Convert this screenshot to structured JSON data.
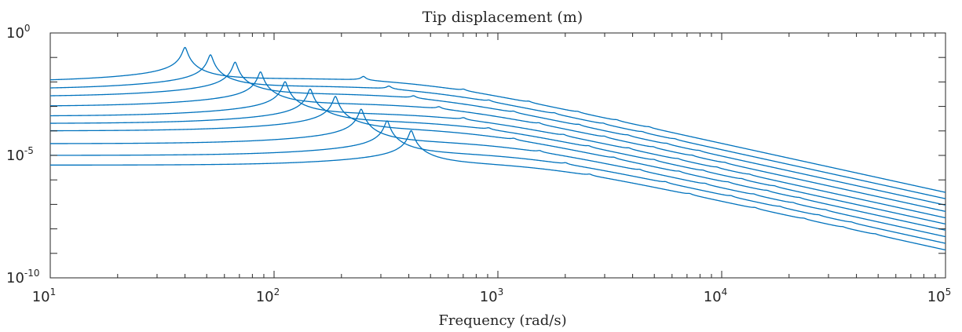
{
  "chart_data": {
    "type": "line",
    "title": "Tip displacement (m)",
    "xlabel": "Frequency (rad/s)",
    "ylabel": "",
    "xscale": "log",
    "yscale": "log",
    "xlim": [
      10,
      100000
    ],
    "ylim": [
      1e-10,
      1
    ],
    "grid": false,
    "line_color": "#0072BD",
    "x_tick_labels": [
      {
        "value": 10,
        "base": "10",
        "exp": "1"
      },
      {
        "value": 100,
        "base": "10",
        "exp": "2"
      },
      {
        "value": 1000,
        "base": "10",
        "exp": "3"
      },
      {
        "value": 10000,
        "base": "10",
        "exp": "4"
      },
      {
        "value": 100000,
        "base": "10",
        "exp": "5"
      }
    ],
    "y_tick_labels": [
      {
        "value": 1,
        "base": "10",
        "exp": "0"
      },
      {
        "value": 1e-05,
        "base": "10",
        "exp": "-5"
      },
      {
        "value": 1e-10,
        "base": "10",
        "exp": "-10"
      }
    ],
    "series": [
      {
        "static_response": 0.01,
        "first_resonance": 40,
        "high_freq_asymptote": 2e-07
      },
      {
        "static_response": 0.005,
        "first_resonance": 52,
        "high_freq_asymptote": 1.1e-07
      },
      {
        "static_response": 0.0025,
        "first_resonance": 67,
        "high_freq_asymptote": 6e-08
      },
      {
        "static_response": 0.001,
        "first_resonance": 87,
        "high_freq_asymptote": 3.3e-08
      },
      {
        "static_response": 0.0004,
        "first_resonance": 112,
        "high_freq_asymptote": 1.8e-08
      },
      {
        "static_response": 0.0002,
        "first_resonance": 145,
        "high_freq_asymptote": 1e-08
      },
      {
        "static_response": 0.0001,
        "first_resonance": 188,
        "high_freq_asymptote": 5.5e-09
      },
      {
        "static_response": 3e-05,
        "first_resonance": 245,
        "high_freq_asymptote": 3e-09
      },
      {
        "static_response": 1e-05,
        "first_resonance": 320,
        "high_freq_asymptote": 1.6e-09
      },
      {
        "static_response": 4e-06,
        "first_resonance": 410,
        "high_freq_asymptote": 8.5e-10
      }
    ]
  }
}
